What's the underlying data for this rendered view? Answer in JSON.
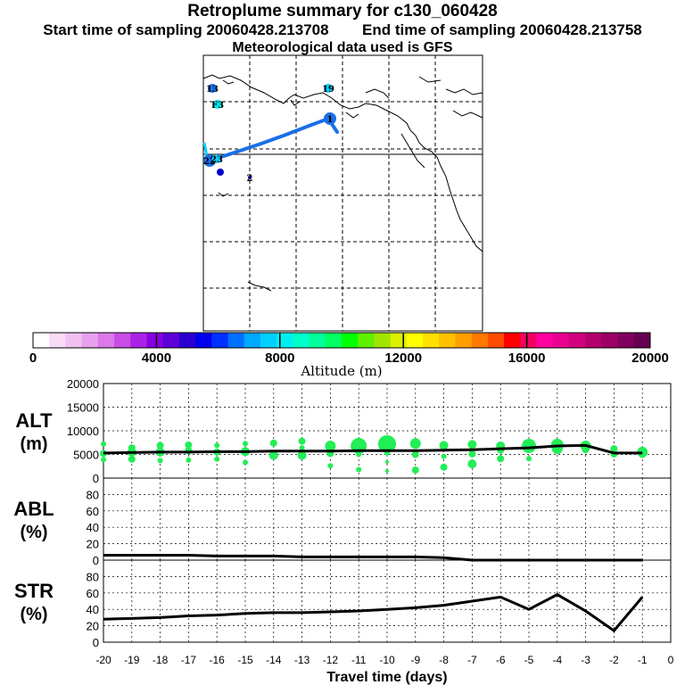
{
  "header": {
    "title": "Retroplume summary for c130_060428",
    "start_label": "Start time of sampling 20060428.213708",
    "end_label": "End time of sampling 20060428.213758",
    "met_label": "Meteorological data used is GFS"
  },
  "colorbar": {
    "axis_label": "Altitude (m)",
    "ticks": [
      "0",
      "4000",
      "8000",
      "12000",
      "16000",
      "20000"
    ],
    "range": [
      0,
      20000
    ],
    "colors": [
      "#ffffff",
      "#f7dbf7",
      "#f0c0f0",
      "#e8a0ee",
      "#dc78ea",
      "#c84ce6",
      "#aa22e6",
      "#8800e0",
      "#5e00d8",
      "#2c00d2",
      "#0000ee",
      "#0030ff",
      "#0070ff",
      "#00a8ff",
      "#00d0ff",
      "#00f0f0",
      "#00ffcc",
      "#00ff9c",
      "#00ff60",
      "#00ff00",
      "#60f000",
      "#a0e600",
      "#dcf000",
      "#ffff00",
      "#ffe000",
      "#ffc000",
      "#ffa000",
      "#ff7800",
      "#ff4c00",
      "#ff0000",
      "#f00060",
      "#ff00a0",
      "#e80090",
      "#d0007e",
      "#b4006c",
      "#9c0064",
      "#800060",
      "#660050"
    ]
  },
  "map": {
    "labels": [
      {
        "text": "13",
        "color": "#00a8ff",
        "dot": "#1a6fe8"
      },
      {
        "text": "19",
        "color": "#00d0ff",
        "dot": "#00d0ff"
      },
      {
        "text": "F3",
        "color": "#00d0ff",
        "dot": "#00e8f0"
      },
      {
        "text": "1",
        "color": "#1a6fe8",
        "dot": "#1a6fe8"
      },
      {
        "text": "22",
        "color": "#00a8ff",
        "dot": "#1a6fe8"
      },
      {
        "text": "23",
        "color": "#00d0ff",
        "dot": "#00d0ff"
      },
      {
        "text": "2",
        "color": "#0000cc",
        "dot": "#0000cc"
      }
    ]
  },
  "chart_data": [
    {
      "type": "scatter",
      "name": "ALT",
      "ylabel": "ALT\n(m)",
      "ylabel_lines": [
        "ALT",
        "(m)"
      ],
      "ylim": [
        0,
        20000
      ],
      "yticks": [
        0,
        5000,
        10000,
        15000,
        20000
      ],
      "xlim": [
        -20,
        0
      ],
      "point_color": "#22ee55",
      "line": {
        "x": [
          -20,
          -19,
          -18,
          -17,
          -16,
          -15,
          -14,
          -13,
          -12,
          -11,
          -10,
          -9,
          -8,
          -7,
          -6,
          -5,
          -4,
          -3,
          -2,
          -1
        ],
        "y": [
          5300,
          5400,
          5500,
          5500,
          5600,
          5600,
          5700,
          5700,
          5700,
          5800,
          5800,
          5800,
          5900,
          6000,
          6200,
          6400,
          6800,
          6900,
          5300,
          5300
        ]
      },
      "points": [
        {
          "x": -20,
          "y": 7200,
          "s": 3
        },
        {
          "x": -20,
          "y": 5200,
          "s": 4
        },
        {
          "x": -20,
          "y": 3900,
          "s": 3
        },
        {
          "x": -19,
          "y": 6400,
          "s": 4
        },
        {
          "x": -19,
          "y": 5500,
          "s": 5
        },
        {
          "x": -19,
          "y": 4000,
          "s": 4
        },
        {
          "x": -18,
          "y": 6900,
          "s": 4
        },
        {
          "x": -18,
          "y": 5500,
          "s": 5
        },
        {
          "x": -18,
          "y": 3700,
          "s": 3
        },
        {
          "x": -17,
          "y": 7000,
          "s": 4
        },
        {
          "x": -17,
          "y": 5800,
          "s": 4
        },
        {
          "x": -17,
          "y": 3800,
          "s": 3
        },
        {
          "x": -16,
          "y": 6900,
          "s": 3
        },
        {
          "x": -16,
          "y": 5500,
          "s": 4
        },
        {
          "x": -16,
          "y": 4000,
          "s": 3
        },
        {
          "x": -15,
          "y": 7300,
          "s": 3
        },
        {
          "x": -15,
          "y": 5600,
          "s": 5
        },
        {
          "x": -15,
          "y": 3300,
          "s": 3
        },
        {
          "x": -14,
          "y": 7400,
          "s": 4
        },
        {
          "x": -14,
          "y": 4800,
          "s": 5
        },
        {
          "x": -13,
          "y": 7800,
          "s": 4
        },
        {
          "x": -13,
          "y": 6400,
          "s": 3
        },
        {
          "x": -13,
          "y": 4800,
          "s": 5
        },
        {
          "x": -12,
          "y": 6800,
          "s": 6
        },
        {
          "x": -12,
          "y": 5200,
          "s": 4
        },
        {
          "x": -12,
          "y": 2600,
          "s": 3
        },
        {
          "x": -11,
          "y": 6800,
          "s": 9
        },
        {
          "x": -11,
          "y": 5000,
          "s": 3
        },
        {
          "x": -11,
          "y": 1800,
          "s": 3
        },
        {
          "x": -10,
          "y": 7200,
          "s": 10
        },
        {
          "x": -10,
          "y": 5300,
          "s": 3
        },
        {
          "x": -10,
          "y": 3400,
          "s": 2
        },
        {
          "x": -10,
          "y": 1500,
          "s": 2
        },
        {
          "x": -9,
          "y": 7300,
          "s": 6
        },
        {
          "x": -9,
          "y": 5000,
          "s": 4
        },
        {
          "x": -9,
          "y": 1700,
          "s": 4
        },
        {
          "x": -8,
          "y": 6900,
          "s": 5
        },
        {
          "x": -8,
          "y": 4600,
          "s": 3
        },
        {
          "x": -8,
          "y": 2300,
          "s": 4
        },
        {
          "x": -7,
          "y": 7100,
          "s": 5
        },
        {
          "x": -7,
          "y": 5100,
          "s": 4
        },
        {
          "x": -7,
          "y": 3000,
          "s": 5
        },
        {
          "x": -6,
          "y": 6800,
          "s": 5
        },
        {
          "x": -6,
          "y": 5900,
          "s": 4
        },
        {
          "x": -6,
          "y": 4100,
          "s": 4
        },
        {
          "x": -5,
          "y": 6800,
          "s": 8
        },
        {
          "x": -5,
          "y": 4100,
          "s": 3
        },
        {
          "x": -4,
          "y": 7000,
          "s": 7
        },
        {
          "x": -4,
          "y": 6200,
          "s": 6
        },
        {
          "x": -3,
          "y": 6800,
          "s": 6
        },
        {
          "x": -3,
          "y": 6000,
          "s": 4
        },
        {
          "x": -2,
          "y": 6200,
          "s": 4
        },
        {
          "x": -2,
          "y": 5100,
          "s": 4
        },
        {
          "x": -1,
          "y": 5500,
          "s": 6
        },
        {
          "x": -1,
          "y": 5000,
          "s": 4
        }
      ]
    },
    {
      "type": "line",
      "name": "ABL",
      "ylabel": "ABL\n(%)",
      "ylabel_lines": [
        "ABL",
        "(%)"
      ],
      "ylim": [
        0,
        100
      ],
      "yticks": [
        0,
        20,
        40,
        60,
        80
      ],
      "xlim": [
        -20,
        0
      ],
      "x": [
        -20,
        -19,
        -18,
        -17,
        -16,
        -15,
        -14,
        -13,
        -12,
        -11,
        -10,
        -9,
        -8,
        -7,
        -6,
        -5,
        -4,
        -3,
        -2,
        -1
      ],
      "y": [
        6,
        6,
        6,
        6,
        5,
        5,
        5,
        4,
        4,
        4,
        4,
        4,
        3,
        0,
        0,
        0,
        0,
        0,
        0,
        0
      ]
    },
    {
      "type": "line",
      "name": "STR",
      "ylabel": "STR\n(%)",
      "ylabel_lines": [
        "STR",
        "(%)"
      ],
      "ylim": [
        0,
        100
      ],
      "yticks": [
        0,
        20,
        40,
        60,
        80
      ],
      "xlim": [
        -20,
        0
      ],
      "x": [
        -20,
        -19,
        -18,
        -17,
        -16,
        -15,
        -14,
        -13,
        -12,
        -11,
        -10,
        -9,
        -8,
        -7,
        -6,
        -5,
        -4,
        -3,
        -2,
        -1
      ],
      "y": [
        28,
        29,
        30,
        32,
        33,
        35,
        36,
        36,
        37,
        38,
        40,
        42,
        45,
        50,
        55,
        40,
        58,
        38,
        14,
        55
      ]
    }
  ],
  "xaxis": {
    "label": "Travel time (days)",
    "ticks": [
      "-20",
      "-19",
      "-18",
      "-17",
      "-16",
      "-15",
      "-14",
      "-13",
      "-12",
      "-11",
      "-10",
      "-9",
      "-8",
      "-7",
      "-6",
      "-5",
      "-4",
      "-3",
      "-2",
      "-1",
      "0"
    ]
  }
}
